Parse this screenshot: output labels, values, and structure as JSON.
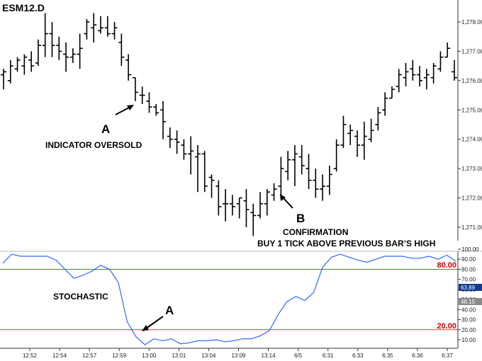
{
  "chart_data": [
    {
      "type": "ohlc",
      "title": "ESM12.D",
      "ylim": [
        1270.6,
        1278.4
      ],
      "price_ticks": [
        "1,271.00",
        "1,272.00",
        "1,273.00",
        "1,274.00",
        "1,275.00",
        "1,276.00",
        "1,277.00",
        "1,278.00"
      ],
      "bars": [
        [
          1276.4,
          1275.7,
          1276.2,
          1276.3
        ],
        [
          1276.7,
          1275.9,
          1276.0,
          1276.5
        ],
        [
          1276.8,
          1276.3,
          1276.4,
          1276.7
        ],
        [
          1276.9,
          1276.2,
          1276.5,
          1276.8
        ],
        [
          1277.0,
          1276.3,
          1276.7,
          1276.5
        ],
        [
          1277.4,
          1276.5,
          1276.6,
          1277.2
        ],
        [
          1278.3,
          1276.8,
          1277.2,
          1277.6
        ],
        [
          1278.0,
          1276.8,
          1277.6,
          1277.2
        ],
        [
          1277.5,
          1276.7,
          1277.2,
          1277.0
        ],
        [
          1277.3,
          1276.3,
          1276.9,
          1276.8
        ],
        [
          1277.1,
          1276.6,
          1276.8,
          1276.9
        ],
        [
          1277.6,
          1276.4,
          1276.9,
          1277.1
        ],
        [
          1278.1,
          1277.4,
          1277.6,
          1278.0
        ],
        [
          1278.3,
          1277.3,
          1277.8,
          1277.9
        ],
        [
          1278.2,
          1277.6,
          1277.7,
          1277.8
        ],
        [
          1278.2,
          1277.5,
          1277.8,
          1277.6
        ],
        [
          1278.0,
          1277.4,
          1277.6,
          1277.8
        ],
        [
          1277.6,
          1276.5,
          1277.3,
          1276.8
        ],
        [
          1276.9,
          1276.0,
          1276.7,
          1276.2
        ],
        [
          1276.1,
          1275.3,
          1276.1,
          1275.6
        ],
        [
          1275.8,
          1275.2,
          1275.5,
          1275.5
        ],
        [
          1275.6,
          1274.9,
          1275.3,
          1275.1
        ],
        [
          1275.2,
          1274.8,
          1275.1,
          1274.9
        ],
        [
          1275.3,
          1274.0,
          1275.0,
          1274.6
        ],
        [
          1274.4,
          1273.7,
          1274.1,
          1274.0
        ],
        [
          1274.3,
          1273.5,
          1274.0,
          1273.9
        ],
        [
          1274.0,
          1273.3,
          1273.8,
          1273.5
        ],
        [
          1274.1,
          1272.8,
          1273.5,
          1273.6
        ],
        [
          1273.8,
          1272.2,
          1273.4,
          1273.5
        ],
        [
          1273.6,
          1272.2,
          1273.5,
          1272.4
        ],
        [
          1272.8,
          1272.0,
          1272.7,
          1272.6
        ],
        [
          1272.6,
          1271.4,
          1272.4,
          1271.7
        ],
        [
          1272.3,
          1271.2,
          1271.8,
          1271.8
        ],
        [
          1272.1,
          1271.4,
          1271.8,
          1271.7
        ],
        [
          1272.0,
          1271.3,
          1271.8,
          1272.0
        ],
        [
          1272.3,
          1271.0,
          1271.9,
          1271.6
        ],
        [
          1271.8,
          1270.7,
          1271.5,
          1271.4
        ],
        [
          1272.2,
          1271.3,
          1271.4,
          1271.8
        ],
        [
          1272.3,
          1271.4,
          1271.8,
          1272.2
        ],
        [
          1272.5,
          1271.9,
          1272.1,
          1272.3
        ],
        [
          1273.4,
          1272.1,
          1272.4,
          1273.0
        ],
        [
          1273.6,
          1272.6,
          1272.9,
          1273.3
        ],
        [
          1273.8,
          1272.4,
          1273.3,
          1273.5
        ],
        [
          1273.8,
          1272.8,
          1273.4,
          1273.1
        ],
        [
          1273.5,
          1272.3,
          1273.0,
          1272.6
        ],
        [
          1273.0,
          1272.0,
          1272.6,
          1272.3
        ],
        [
          1272.8,
          1271.9,
          1272.3,
          1272.4
        ],
        [
          1273.1,
          1272.1,
          1272.4,
          1272.8
        ],
        [
          1274.0,
          1272.9,
          1273.0,
          1273.8
        ],
        [
          1274.8,
          1273.7,
          1273.8,
          1274.5
        ],
        [
          1274.5,
          1273.8,
          1274.2,
          1274.3
        ],
        [
          1274.3,
          1273.4,
          1274.1,
          1273.8
        ],
        [
          1274.6,
          1273.3,
          1273.8,
          1274.1
        ],
        [
          1274.7,
          1273.9,
          1274.0,
          1274.3
        ],
        [
          1275.1,
          1274.3,
          1274.5,
          1274.9
        ],
        [
          1275.6,
          1274.8,
          1275.0,
          1275.4
        ],
        [
          1275.8,
          1275.4,
          1275.4,
          1275.7
        ],
        [
          1276.4,
          1275.6,
          1275.8,
          1276.2
        ],
        [
          1276.6,
          1275.8,
          1276.1,
          1276.3
        ],
        [
          1276.7,
          1276.0,
          1276.4,
          1276.2
        ],
        [
          1276.5,
          1275.8,
          1276.2,
          1276.0
        ],
        [
          1276.4,
          1275.7,
          1276.1,
          1276.2
        ],
        [
          1276.6,
          1275.9,
          1276.1,
          1276.5
        ],
        [
          1277.0,
          1276.3,
          1276.4,
          1276.8
        ],
        [
          1277.3,
          1276.8,
          1276.8,
          1277.1
        ],
        [
          1276.7,
          1276.0,
          1276.3,
          1276.1
        ]
      ],
      "annotations": {
        "a_letter": "A",
        "a_text": "INDICATOR OVERSOLD",
        "b_letter": "B",
        "b_text_1": "CONFIRMATION",
        "b_text_2": "BUY 1 TICK ABOVE PREVIOUS BAR’S HIGH"
      }
    },
    {
      "type": "line",
      "title": "",
      "ylim": [
        0,
        100
      ],
      "y_ticks": [
        "100.00",
        "90.00",
        "80.00",
        "70.00",
        "60.00",
        "50.00",
        "40.00",
        "30.00",
        "20.00",
        "10.00"
      ],
      "reference_lines": [
        80,
        20
      ],
      "reference_labels": [
        "80.00",
        "20.00"
      ],
      "x_tick_labels": [
        "12:52",
        "12:54",
        "12:57",
        "12:59",
        "13:00",
        "13:01",
        "13:04",
        "13:09",
        "13:14",
        "6/5",
        "6:31",
        "6:33",
        "6:35",
        "6:36",
        "6:37"
      ],
      "series": [
        {
          "name": "",
          "values": [
            86,
            95,
            93,
            93,
            93,
            93,
            89,
            80,
            71,
            74,
            78,
            84,
            80,
            67,
            28,
            13,
            5,
            11,
            9,
            11,
            6,
            7,
            9,
            9,
            10,
            8,
            9,
            11,
            11,
            14,
            19,
            35,
            48,
            53,
            49,
            57,
            82,
            92,
            95,
            92,
            89,
            87,
            90,
            93,
            93,
            93,
            91,
            91,
            93,
            90,
            94,
            88
          ]
        }
      ],
      "value_badges": [
        "63.89",
        "48.15"
      ],
      "annotations": {
        "label": "STOCHASTIC",
        "a_letter": "A"
      }
    }
  ],
  "colors": {
    "line": "#3366ff",
    "reference": "#ff3333",
    "badge_1": "#153a8f",
    "badge_2": "#8a8a8a"
  }
}
